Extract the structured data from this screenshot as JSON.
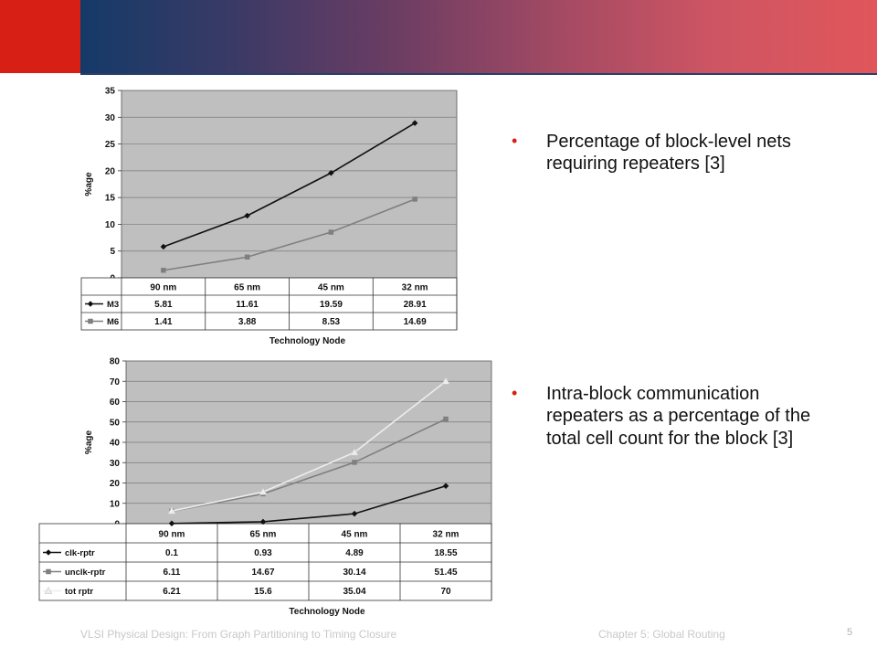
{
  "bullets": [
    "Percentage of block-level nets requiring repeaters [3]",
    "Intra-block communication repeaters as a percentage of the total cell count for the block [3]"
  ],
  "footer": {
    "left": "VLSI Physical Design: From Graph Partitioning to Timing Closure",
    "middle": "Chapter 5: Global Routing",
    "page": "5"
  },
  "colors": {
    "header_red": "#d81f16",
    "plot_bg": "#bfbfbf"
  },
  "chart_data": [
    {
      "type": "line",
      "ylabel": "%age",
      "xlabel": "Technology Node",
      "categories": [
        "90 nm",
        "65 nm",
        "45 nm",
        "32 nm"
      ],
      "ylim": [
        0,
        35
      ],
      "yticks": [
        0,
        5,
        10,
        15,
        20,
        25,
        30,
        35
      ],
      "grid": true,
      "series": [
        {
          "name": "M3",
          "values": [
            5.81,
            11.61,
            19.59,
            28.91
          ],
          "labels": [
            "5.81",
            "11.61",
            "19.59",
            "28.91"
          ],
          "color": "#111111",
          "marker": "diamond"
        },
        {
          "name": "M6",
          "values": [
            1.41,
            3.88,
            8.53,
            14.69
          ],
          "labels": [
            "1.41",
            "3.88",
            "8.53",
            "14.69"
          ],
          "color": "#7f7f7f",
          "marker": "square"
        }
      ]
    },
    {
      "type": "line",
      "ylabel": "%age",
      "xlabel": "Technology Node",
      "categories": [
        "90 nm",
        "65 nm",
        "45 nm",
        "32 nm"
      ],
      "ylim": [
        0,
        80
      ],
      "yticks": [
        0,
        10,
        20,
        30,
        40,
        50,
        60,
        70,
        80
      ],
      "grid": true,
      "series": [
        {
          "name": "clk-rptr",
          "values": [
            0.1,
            0.93,
            4.89,
            18.55
          ],
          "labels": [
            "0.1",
            "0.93",
            "4.89",
            "18.55"
          ],
          "color": "#111111",
          "marker": "diamond"
        },
        {
          "name": "unclk-rptr",
          "values": [
            6.11,
            14.67,
            30.14,
            51.45
          ],
          "labels": [
            "6.11",
            "14.67",
            "30.14",
            "51.45"
          ],
          "color": "#7f7f7f",
          "marker": "square"
        },
        {
          "name": "tot rptr",
          "values": [
            6.21,
            15.6,
            35.04,
            70
          ],
          "labels": [
            "6.21",
            "15.6",
            "35.04",
            "70"
          ],
          "color": "#ededed",
          "marker": "triangle"
        }
      ]
    }
  ]
}
